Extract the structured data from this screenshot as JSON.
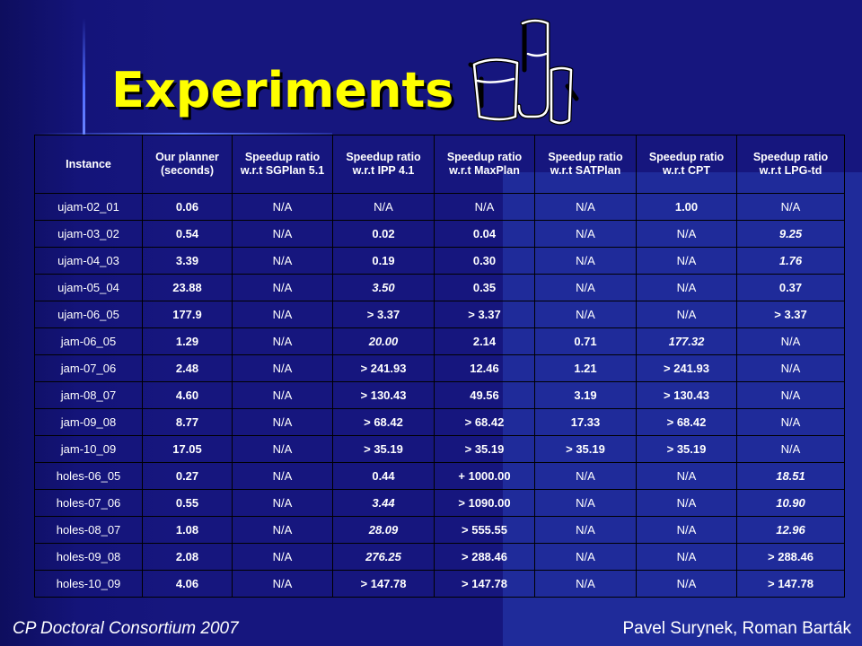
{
  "title": "Experiments",
  "footer": {
    "left": "CP Doctoral Consortium 2007",
    "right": "Pavel Surynek, Roman Barták"
  },
  "icons": {
    "illustration": "lab-beakers-icon"
  },
  "colors": {
    "title": "#ffff00",
    "background": "#16167e",
    "text": "#ffffff"
  },
  "table": {
    "headers": [
      "Instance",
      "Our planner (seconds)",
      "Speedup ratio w.r.t SGPlan 5.1",
      "Speedup ratio w.r.t IPP 4.1",
      "Speedup ratio w.r.t MaxPlan",
      "Speedup ratio w.r.t SATPlan",
      "Speedup ratio w.r.t CPT",
      "Speedup ratio w.r.t LPG-td"
    ],
    "rows": [
      {
        "cells": [
          "ujam-02_01",
          "0.06",
          "N/A",
          "N/A",
          "N/A",
          "N/A",
          "1.00",
          "N/A"
        ],
        "styles": [
          "inst",
          "plan",
          "na",
          "na",
          "na",
          "na",
          "bo",
          "na"
        ]
      },
      {
        "cells": [
          "ujam-03_02",
          "0.54",
          "N/A",
          "0.02",
          "0.04",
          "N/A",
          "N/A",
          "9.25"
        ],
        "styles": [
          "inst",
          "plan",
          "na",
          "bo",
          "bo",
          "na",
          "na",
          "bi"
        ]
      },
      {
        "cells": [
          "ujam-04_03",
          "3.39",
          "N/A",
          "0.19",
          "0.30",
          "N/A",
          "N/A",
          "1.76"
        ],
        "styles": [
          "inst",
          "plan",
          "na",
          "bo",
          "bo",
          "na",
          "na",
          "bi"
        ]
      },
      {
        "cells": [
          "ujam-05_04",
          "23.88",
          "N/A",
          "3.50",
          "0.35",
          "N/A",
          "N/A",
          "0.37"
        ],
        "styles": [
          "inst",
          "plan",
          "na",
          "bi",
          "bo",
          "na",
          "na",
          "bo"
        ]
      },
      {
        "cells": [
          "ujam-06_05",
          "177.9",
          "N/A",
          "> 3.37",
          "> 3.37",
          "N/A",
          "N/A",
          "> 3.37"
        ],
        "styles": [
          "inst",
          "plan",
          "na",
          "bo",
          "bo",
          "na",
          "na",
          "bo"
        ]
      },
      {
        "cells": [
          "jam-06_05",
          "1.29",
          "N/A",
          "20.00",
          "2.14",
          "0.71",
          "177.32",
          "N/A"
        ],
        "styles": [
          "inst",
          "plan",
          "na",
          "bi",
          "bo",
          "bo",
          "bi",
          "na"
        ]
      },
      {
        "cells": [
          "jam-07_06",
          "2.48",
          "N/A",
          "> 241.93",
          "12.46",
          "1.21",
          "> 241.93",
          "N/A"
        ],
        "styles": [
          "inst",
          "plan",
          "na",
          "bo",
          "bo",
          "bo",
          "bo",
          "na"
        ]
      },
      {
        "cells": [
          "jam-08_07",
          "4.60",
          "N/A",
          "> 130.43",
          "49.56",
          "3.19",
          "> 130.43",
          "N/A"
        ],
        "styles": [
          "inst",
          "plan",
          "na",
          "bo",
          "bo",
          "bo",
          "bo",
          "na"
        ]
      },
      {
        "cells": [
          "jam-09_08",
          "8.77",
          "N/A",
          "> 68.42",
          "> 68.42",
          "17.33",
          "> 68.42",
          "N/A"
        ],
        "styles": [
          "inst",
          "plan",
          "na",
          "bo",
          "bo",
          "bo",
          "bo",
          "na"
        ]
      },
      {
        "cells": [
          "jam-10_09",
          "17.05",
          "N/A",
          "> 35.19",
          "> 35.19",
          "> 35.19",
          "> 35.19",
          "N/A"
        ],
        "styles": [
          "inst",
          "plan",
          "na",
          "bo",
          "bo",
          "bo",
          "bo",
          "na"
        ]
      },
      {
        "cells": [
          "holes-06_05",
          "0.27",
          "N/A",
          "0.44",
          "+ 1000.00",
          "N/A",
          "N/A",
          "18.51"
        ],
        "styles": [
          "inst",
          "plan",
          "na",
          "bo",
          "bo",
          "na",
          "na",
          "bi"
        ]
      },
      {
        "cells": [
          "holes-07_06",
          "0.55",
          "N/A",
          "3.44",
          "> 1090.00",
          "N/A",
          "N/A",
          "10.90"
        ],
        "styles": [
          "inst",
          "plan",
          "na",
          "bi",
          "bo",
          "na",
          "na",
          "bi"
        ]
      },
      {
        "cells": [
          "holes-08_07",
          "1.08",
          "N/A",
          "28.09",
          "> 555.55",
          "N/A",
          "N/A",
          "12.96"
        ],
        "styles": [
          "inst",
          "plan",
          "na",
          "bi",
          "bo",
          "na",
          "na",
          "bi"
        ]
      },
      {
        "cells": [
          "holes-09_08",
          "2.08",
          "N/A",
          "276.25",
          "> 288.46",
          "N/A",
          "N/A",
          "> 288.46"
        ],
        "styles": [
          "inst",
          "plan",
          "na",
          "bi",
          "bo",
          "na",
          "na",
          "bo"
        ]
      },
      {
        "cells": [
          "holes-10_09",
          "4.06",
          "N/A",
          "> 147.78",
          "> 147.78",
          "N/A",
          "N/A",
          "> 147.78"
        ],
        "styles": [
          "inst",
          "plan",
          "na",
          "bo",
          "bo",
          "na",
          "na",
          "bo"
        ]
      }
    ]
  }
}
